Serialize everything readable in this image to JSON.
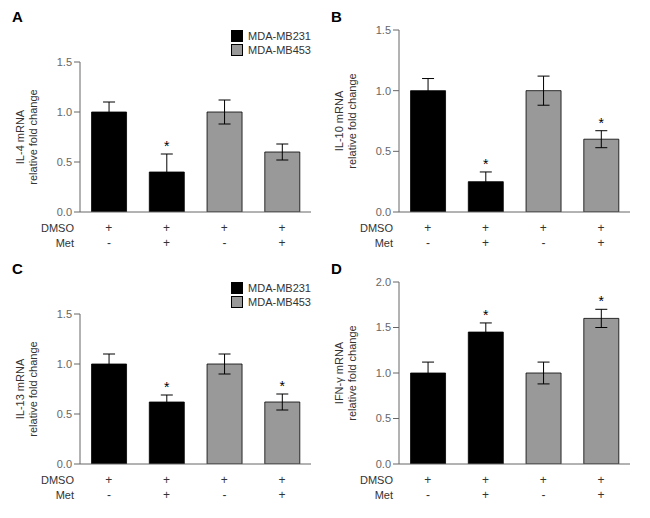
{
  "chart_data": [
    {
      "type": "bar",
      "title": "A",
      "y_label": "IL-4 mRNA\nrelative fold change",
      "categories": [
        null,
        null,
        null,
        null
      ],
      "series": [
        {
          "name": "MDA-MB231",
          "color": "#000000",
          "values": [
            1.0,
            0.4,
            null,
            null
          ],
          "errors": [
            0.1,
            0.18,
            null,
            null
          ]
        },
        {
          "name": "MDA-MB453",
          "color": "#999999",
          "values": [
            null,
            null,
            1.0,
            0.6
          ],
          "errors": [
            null,
            null,
            0.12,
            0.08
          ]
        }
      ],
      "significance": [
        null,
        "*",
        null,
        null
      ],
      "conditions": [
        {
          "name": "DMSO",
          "labels": [
            "+",
            "+",
            "+",
            "+"
          ]
        },
        {
          "name": "Met",
          "labels": [
            "-",
            "+",
            "-",
            "+"
          ]
        }
      ],
      "ylim": [
        0,
        1.5
      ],
      "yticks": [
        {
          "value": 0.0,
          "label": "0.0"
        },
        {
          "value": 0.5,
          "label": "0.5"
        },
        {
          "value": 1.0,
          "label": "1.0"
        },
        {
          "value": 1.5,
          "label": "1.5"
        }
      ],
      "tick_labels": "y",
      "legend": "upper right"
    },
    {
      "type": "bar",
      "title": "B",
      "y_label": "IL-10 mRNA\nrelative fold change",
      "categories": [
        null,
        null,
        null,
        null
      ],
      "values": [
        1.0,
        0.25,
        1.0,
        0.6
      ],
      "errors": [
        0.1,
        0.08,
        0.12,
        0.07
      ],
      "colors": [
        "#000000",
        "#000000",
        "#999999",
        "#999999"
      ],
      "significance": [
        null,
        "*",
        null,
        "*"
      ],
      "conditions": [
        {
          "name": "DMSO",
          "labels": [
            "+",
            "+",
            "+",
            "+"
          ]
        },
        {
          "name": "Met",
          "labels": [
            "-",
            "+",
            "-",
            "+"
          ]
        }
      ],
      "ylim": [
        0,
        1.5
      ],
      "yticks": [
        {
          "value": 0.0,
          "label": "0.0"
        },
        {
          "value": 0.5,
          "label": "0.5"
        },
        {
          "value": 1.0,
          "label": "1.0"
        },
        {
          "value": 1.5,
          "label": "1.5"
        }
      ],
      "tick_labels": "y"
    },
    {
      "type": "bar",
      "title": "C",
      "y_label": "IL-13 mRNA\nrelative fold change",
      "categories": [
        null,
        null,
        null,
        null
      ],
      "series": [
        {
          "name": "MDA-MB231",
          "color": "#000000",
          "values": [
            1.0,
            0.62,
            null,
            null
          ],
          "errors": [
            0.1,
            0.07,
            null,
            null
          ]
        },
        {
          "name": "MDA-MB453",
          "color": "#999999",
          "values": [
            null,
            null,
            1.0,
            0.62
          ],
          "errors": [
            null,
            null,
            0.1,
            0.08
          ]
        }
      ],
      "significance": [
        null,
        "*",
        null,
        "*"
      ],
      "conditions": [
        {
          "name": "DMSO",
          "labels": [
            "+",
            "+",
            "+",
            "+"
          ]
        },
        {
          "name": "Met",
          "labels": [
            "-",
            "+",
            "-",
            "+"
          ]
        }
      ],
      "ylim": [
        0,
        1.5
      ],
      "yticks": [
        {
          "value": 0.0,
          "label": "0.0"
        },
        {
          "value": 0.5,
          "label": "0.5"
        },
        {
          "value": 1.0,
          "label": "1.0"
        },
        {
          "value": 1.5,
          "label": "1.5"
        }
      ],
      "tick_labels": "y",
      "legend": "upper right"
    },
    {
      "type": "bar",
      "title": "D",
      "y_label": "IFN-γ mRNA\nrelative fold change",
      "categories": [
        null,
        null,
        null,
        null
      ],
      "values": [
        1.0,
        1.45,
        1.0,
        1.6
      ],
      "errors": [
        0.12,
        0.1,
        0.12,
        0.1
      ],
      "colors": [
        "#000000",
        "#000000",
        "#999999",
        "#999999"
      ],
      "significance": [
        null,
        "*",
        null,
        "*"
      ],
      "conditions": [
        {
          "name": "DMSO",
          "labels": [
            "+",
            "+",
            "+",
            "+"
          ]
        },
        {
          "name": "Met",
          "labels": [
            "-",
            "+",
            "-",
            "+"
          ]
        }
      ],
      "ylim": [
        0,
        2.0
      ],
      "yticks": [
        {
          "value": 0.0,
          "label": "0.0"
        },
        {
          "value": 0.5,
          "label": "0.5"
        },
        {
          "value": 1.0,
          "label": "1.0"
        },
        {
          "value": 1.5,
          "label": "1.5"
        },
        {
          "value": 2.0,
          "label": "2.0"
        }
      ],
      "tick_labels": "y"
    }
  ]
}
